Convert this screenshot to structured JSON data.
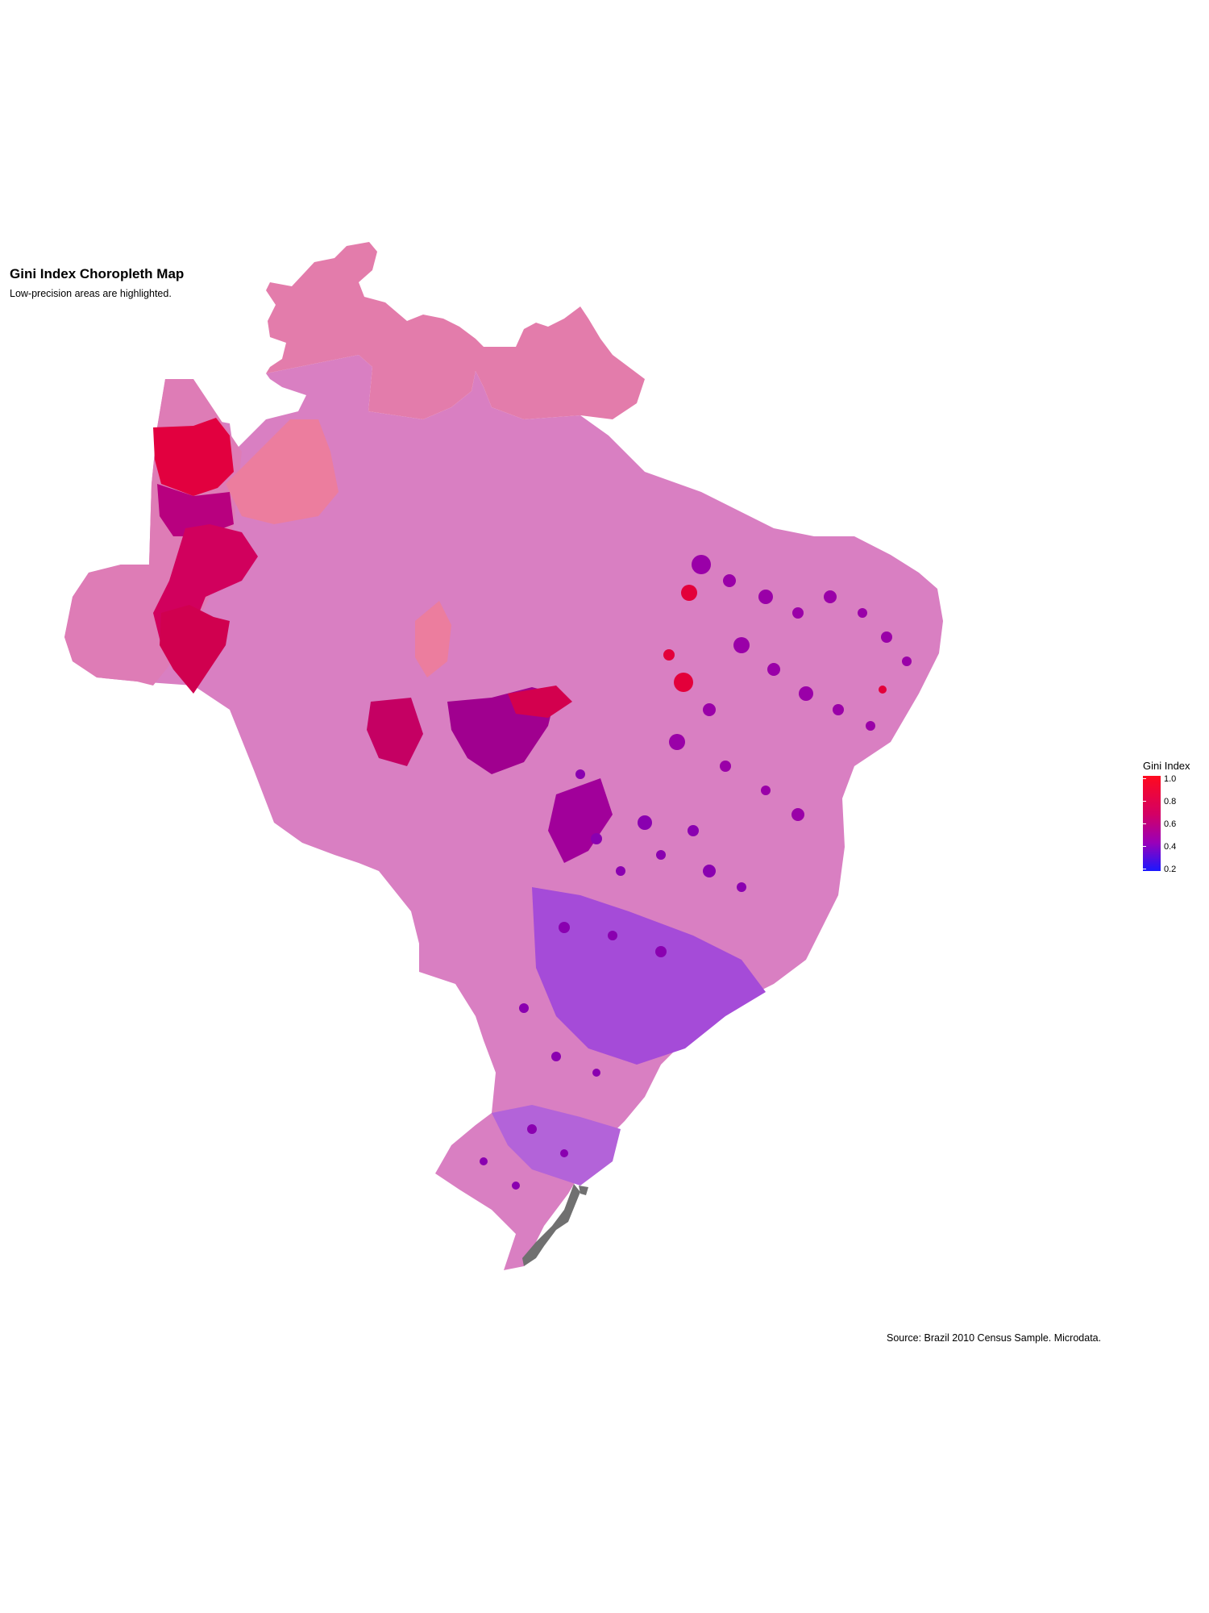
{
  "title": "Gini Index Choropleth Map",
  "subtitle": "Low-precision areas are highlighted.",
  "caption": "Source: Brazil 2010 Census Sample. Microdata.",
  "legend": {
    "title": "Gini Index",
    "ticks": [
      "1.0",
      "0.8",
      "0.6",
      "0.4",
      "0.2"
    ],
    "low_color": "#1a18ff",
    "mid_color": "#9a00b8",
    "high_color": "#ff0a1e"
  },
  "colors": {
    "base_region": "#d97fc2",
    "lowprecision_region": "#e87aa0",
    "missing_region": "#707070"
  }
}
